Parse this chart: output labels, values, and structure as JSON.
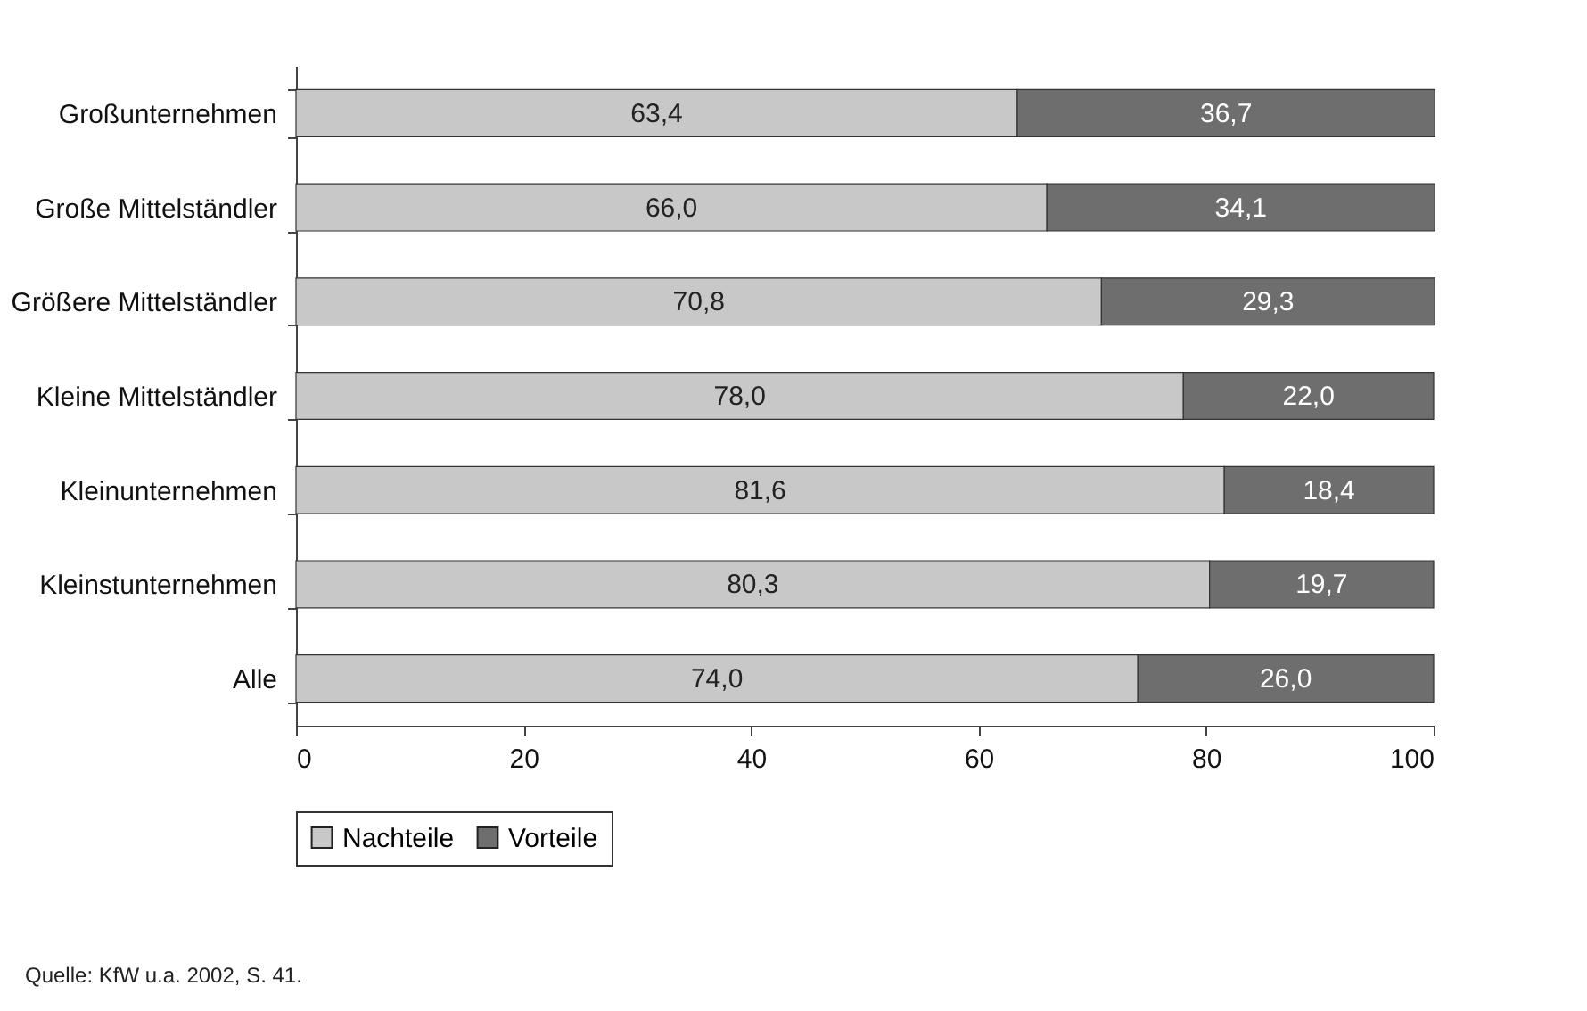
{
  "chart_data": {
    "type": "bar",
    "orientation": "horizontal",
    "stacked": true,
    "categories": [
      "Großunternehmen",
      "Große Mittelständler",
      "Größere Mittelständler",
      "Kleine Mittelständler",
      "Kleinunternehmen",
      "Kleinstunternehmen",
      "Alle"
    ],
    "series": [
      {
        "name": "Nachteile",
        "color": "#c8c8c8",
        "values": [
          63.4,
          66.0,
          70.8,
          78.0,
          81.6,
          80.3,
          74.0
        ],
        "value_labels": [
          "63,4",
          "66,0",
          "70,8",
          "78,0",
          "81,6",
          "80,3",
          "74,0"
        ]
      },
      {
        "name": "Vorteile",
        "color": "#6e6e6e",
        "values": [
          36.7,
          34.1,
          29.3,
          22.0,
          18.4,
          19.7,
          26.0
        ],
        "value_labels": [
          "36,7",
          "34,1",
          "29,3",
          "22,0",
          "18,4",
          "19,7",
          "26,0"
        ]
      }
    ],
    "xlim": [
      0,
      100
    ],
    "xticks": [
      0,
      20,
      40,
      60,
      80,
      100
    ],
    "grid": false,
    "legend": "bottom",
    "annotations": [
      "Quelle: KfW u.a. 2002, S. 41."
    ]
  }
}
